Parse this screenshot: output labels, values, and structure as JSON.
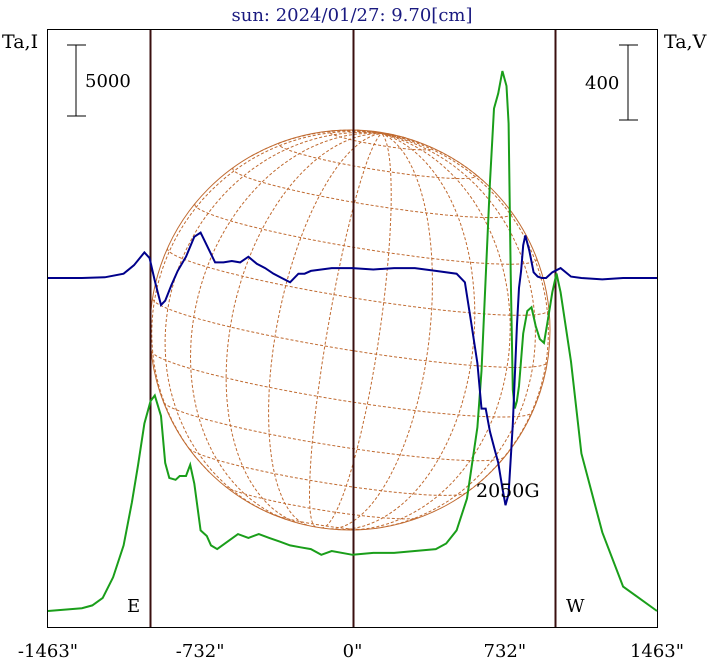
{
  "title": "sun: 2024/01/27: 9.70[cm]",
  "left_axis_label": "Ta,I",
  "right_axis_label": "Ta,V",
  "left_scale_label": "5000",
  "right_scale_label": "400",
  "east_label": "E",
  "west_label": "W",
  "field_label": "2050G",
  "colors": {
    "title": "#1a1a80",
    "intensity": "#00008b",
    "polarization": "#1a9e1a",
    "limb_lines": "#3a0f0f",
    "grid": "#c06a30",
    "axes": "#000000"
  },
  "chart_data": {
    "type": "line",
    "x_unit": "arcsec",
    "xlim": [
      -1463,
      1463
    ],
    "x_ticks": [
      -1463,
      -732,
      0,
      732,
      1463
    ],
    "x_tick_labels": [
      "-1463\"",
      "-732\"",
      "0\"",
      "732\"",
      "1463\""
    ],
    "limb_lines_x": [
      -975,
      0,
      975
    ],
    "left_scale_bar": 5000,
    "right_scale_bar": 400,
    "series": [
      {
        "label": "Ta,I",
        "axis": "left",
        "x": [
          -1463,
          -1300,
          -1190,
          -1100,
          -1050,
          -1000,
          -975,
          -950,
          -920,
          -900,
          -870,
          -840,
          -800,
          -760,
          -730,
          -700,
          -660,
          -620,
          -580,
          -540,
          -500,
          -460,
          -420,
          -380,
          -340,
          -300,
          -260,
          -230,
          -200,
          -150,
          -100,
          -50,
          0,
          100,
          200,
          300,
          400,
          500,
          540,
          570,
          600,
          620,
          640,
          660,
          680,
          700,
          720,
          735,
          750,
          770,
          790,
          800,
          810,
          820,
          830,
          850,
          870,
          890,
          910,
          930,
          960,
          1000,
          1050,
          1100,
          1200,
          1300,
          1463
        ],
        "values": [
          0,
          0,
          50,
          300,
          900,
          1800,
          1400,
          -200,
          -1900,
          -1600,
          -500,
          500,
          1500,
          2900,
          3200,
          2300,
          1100,
          1100,
          1200,
          1100,
          1500,
          1000,
          700,
          300,
          0,
          -300,
          300,
          300,
          500,
          600,
          700,
          700,
          700,
          600,
          700,
          700,
          500,
          300,
          -300,
          -3100,
          -6000,
          -9200,
          -9200,
          -10800,
          -11900,
          -13000,
          -14800,
          -16000,
          -15200,
          -10300,
          -3400,
          -700,
          500,
          2300,
          3000,
          1900,
          400,
          100,
          0,
          0,
          400,
          700,
          100,
          0,
          -100,
          0,
          0
        ]
      },
      {
        "label": "Ta,V",
        "axis": "right",
        "x": [
          -1463,
          -1300,
          -1250,
          -1200,
          -1150,
          -1100,
          -1060,
          -1030,
          -1000,
          -970,
          -950,
          -920,
          -900,
          -880,
          -850,
          -830,
          -800,
          -780,
          -760,
          -730,
          -700,
          -680,
          -650,
          -600,
          -550,
          -500,
          -450,
          -400,
          -350,
          -300,
          -250,
          -200,
          -150,
          -100,
          0,
          100,
          200,
          300,
          400,
          450,
          500,
          550,
          600,
          620,
          640,
          660,
          680,
          700,
          720,
          740,
          750,
          760,
          770,
          780,
          790,
          800,
          820,
          840,
          860,
          880,
          900,
          920,
          940,
          960,
          980,
          1000,
          1050,
          1100,
          1200,
          1300,
          1463
        ],
        "values": [
          0,
          15,
          30,
          70,
          180,
          350,
          580,
          780,
          1000,
          1120,
          1150,
          1040,
          790,
          710,
          700,
          720,
          720,
          780,
          680,
          430,
          400,
          350,
          330,
          370,
          410,
          390,
          410,
          390,
          370,
          350,
          340,
          330,
          300,
          320,
          300,
          310,
          310,
          320,
          330,
          360,
          430,
          600,
          980,
          1280,
          1780,
          2280,
          2680,
          2760,
          2880,
          2800,
          2600,
          1800,
          1180,
          1080,
          1120,
          1200,
          1480,
          1600,
          1620,
          1520,
          1450,
          1430,
          1560,
          1700,
          1800,
          1700,
          1330,
          840,
          420,
          130,
          0
        ]
      }
    ]
  }
}
